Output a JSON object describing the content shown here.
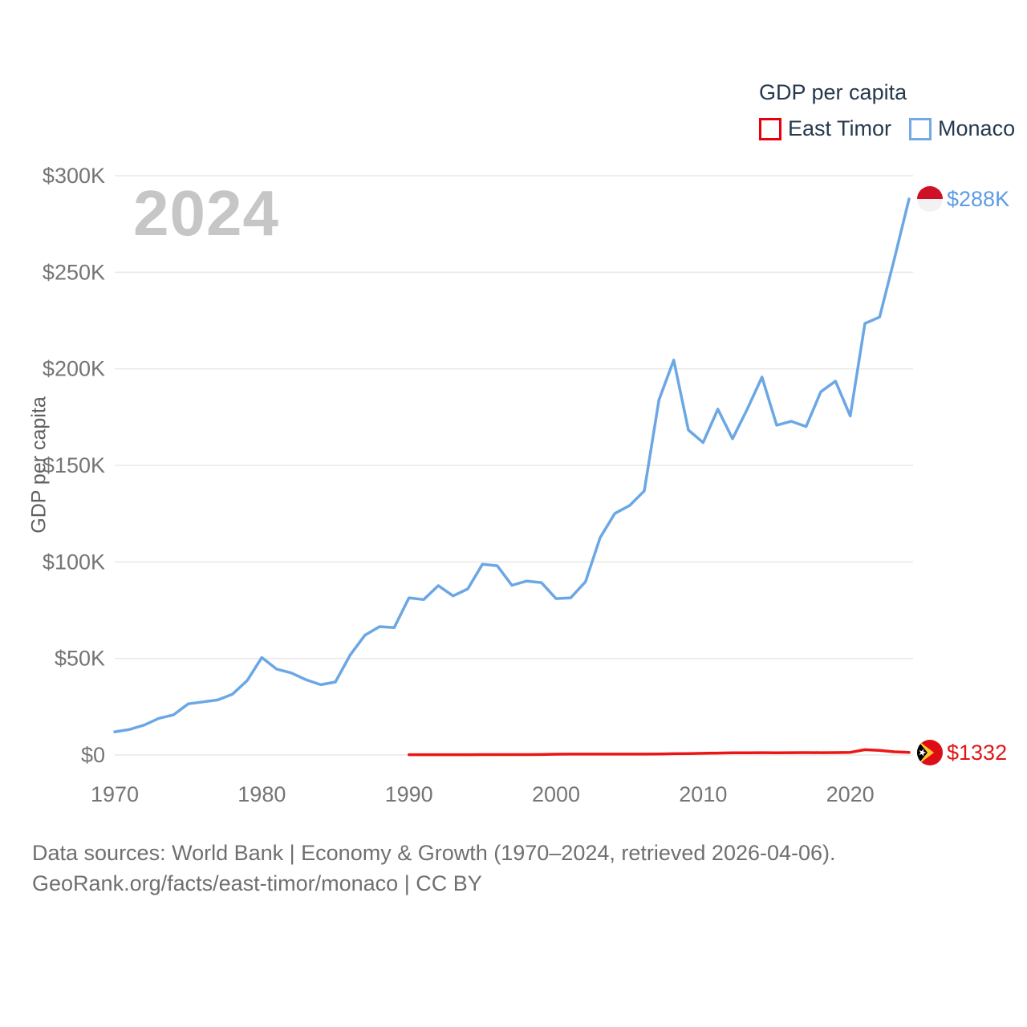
{
  "watermark": "2024",
  "legend": {
    "title": "GDP per capita",
    "items": [
      {
        "label": "East Timor",
        "color": "#e8000d"
      },
      {
        "label": "Monaco",
        "color": "#74aae4"
      }
    ]
  },
  "y_axis": {
    "title": "GDP per capita",
    "ticks": [
      {
        "label": "$300K",
        "value": 300000
      },
      {
        "label": "$250K",
        "value": 250000
      },
      {
        "label": "$200K",
        "value": 200000
      },
      {
        "label": "$150K",
        "value": 150000
      },
      {
        "label": "$100K",
        "value": 100000
      },
      {
        "label": "$50K",
        "value": 50000
      },
      {
        "label": "$0",
        "value": 0
      }
    ]
  },
  "x_axis": {
    "ticks": [
      {
        "label": "1970",
        "value": 1970
      },
      {
        "label": "1980",
        "value": 1980
      },
      {
        "label": "1990",
        "value": 1990
      },
      {
        "label": "2000",
        "value": 2000
      },
      {
        "label": "2010",
        "value": 2010
      },
      {
        "label": "2020",
        "value": 2020
      }
    ]
  },
  "annotations": {
    "monaco_end_label": "$288K",
    "east_timor_end_label": "$1332"
  },
  "footer": {
    "line1": "Data sources: World Bank | Economy & Growth (1970–2024, retrieved 2026-04-06).",
    "line2": "GeoRank.org/facts/east-timor/monaco | CC BY"
  },
  "colors": {
    "grid": "#e9e9e9",
    "axis_text": "#757575",
    "legend_text": "#26394d",
    "watermark": "#c6c6c6",
    "footer_text": "#6f6f6f",
    "monaco_line": "#6ba7e5",
    "east_timor_line": "#ec1515",
    "monaco_label": "#5b9ce6",
    "east_timor_label": "#e11515"
  },
  "chart_data": {
    "type": "line",
    "title": "GDP per capita",
    "xlabel": "",
    "ylabel": "GDP per capita",
    "x_range": [
      1970,
      2024
    ],
    "ylim": [
      0,
      300000
    ],
    "grid": true,
    "legend_position": "top-right",
    "series": [
      {
        "name": "East Timor",
        "color": "#ec1515",
        "end_label": "$1332",
        "x": [
          1990,
          1991,
          1992,
          1993,
          1994,
          1995,
          1996,
          1997,
          1998,
          1999,
          2000,
          2001,
          2002,
          2003,
          2004,
          2005,
          2006,
          2007,
          2008,
          2009,
          2010,
          2011,
          2012,
          2013,
          2014,
          2015,
          2016,
          2017,
          2018,
          2019,
          2020,
          2021,
          2022,
          2023,
          2024
        ],
        "values": [
          150,
          155,
          160,
          170,
          180,
          195,
          205,
          210,
          215,
          240,
          415,
          470,
          460,
          450,
          440,
          475,
          455,
          540,
          650,
          745,
          875,
          1000,
          1119,
          1150,
          1200,
          1175,
          1220,
          1235,
          1220,
          1240,
          1380,
          2741,
          2360,
          1650,
          1332
        ]
      },
      {
        "name": "Monaco",
        "color": "#6ba7e5",
        "end_label": "$288K",
        "x": [
          1970,
          1971,
          1972,
          1973,
          1974,
          1975,
          1976,
          1977,
          1978,
          1979,
          1980,
          1981,
          1982,
          1983,
          1984,
          1985,
          1986,
          1987,
          1988,
          1989,
          1990,
          1991,
          1992,
          1993,
          1994,
          1995,
          1996,
          1997,
          1998,
          1999,
          2000,
          2001,
          2002,
          2003,
          2004,
          2005,
          2006,
          2007,
          2008,
          2009,
          2010,
          2011,
          2012,
          2013,
          2014,
          2015,
          2016,
          2017,
          2018,
          2019,
          2020,
          2021,
          2022,
          2023,
          2024
        ],
        "values": [
          12000,
          13200,
          15500,
          19000,
          20800,
          26500,
          27500,
          28500,
          31500,
          38500,
          50500,
          44500,
          42500,
          39000,
          36400,
          37800,
          51700,
          62000,
          66500,
          66000,
          81400,
          80500,
          87700,
          82400,
          86000,
          98800,
          98000,
          87900,
          90100,
          89300,
          81000,
          81400,
          89700,
          112600,
          125100,
          129200,
          136800,
          183900,
          204500,
          168300,
          161800,
          179100,
          163800,
          179100,
          195700,
          170800,
          172800,
          170100,
          188100,
          193600,
          175600,
          223500,
          226800,
          257000,
          288000
        ]
      }
    ]
  }
}
